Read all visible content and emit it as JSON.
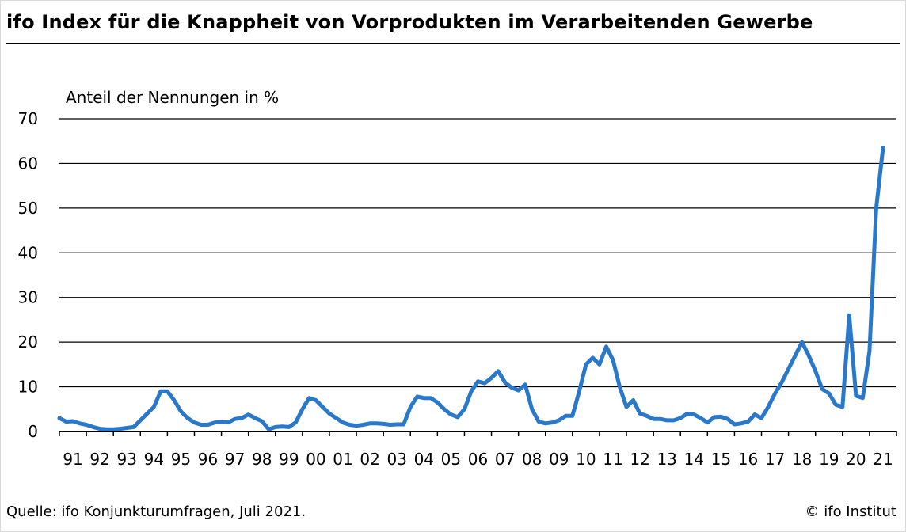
{
  "title": "ifo Index für die Knappheit von Vorprodukten im Verarbeitenden Gewerbe",
  "source": "Quelle: ifo Konjunkturumfragen, Juli 2021.",
  "copyright": "© ifo Institut",
  "colors": {
    "line": "#2a78c9",
    "grid": "#000000"
  },
  "chart_data": {
    "type": "line",
    "ylabel": "Anteil der Nennungen in %",
    "ylim": [
      0,
      70
    ],
    "yticks": [
      0,
      10,
      20,
      30,
      40,
      50,
      60,
      70
    ],
    "xlim": [
      1991,
      2022
    ],
    "xticks": [
      "91",
      "92",
      "93",
      "94",
      "95",
      "96",
      "97",
      "98",
      "99",
      "00",
      "01",
      "02",
      "03",
      "04",
      "05",
      "06",
      "07",
      "08",
      "09",
      "10",
      "11",
      "12",
      "13",
      "14",
      "15",
      "16",
      "17",
      "18",
      "19",
      "20",
      "21"
    ],
    "grid": "horizontal",
    "series": [
      {
        "x": [
          1991.0,
          1991.25,
          1991.5,
          1991.75,
          1992.0,
          1992.25,
          1992.5,
          1992.75,
          1993.0,
          1993.25,
          1993.5,
          1993.75,
          1994.0,
          1994.25,
          1994.5,
          1994.75,
          1995.0,
          1995.25,
          1995.5,
          1995.75,
          1996.0,
          1996.25,
          1996.5,
          1996.75,
          1997.0,
          1997.25,
          1997.5,
          1997.75,
          1998.0,
          1998.25,
          1998.5,
          1998.75,
          1999.0,
          1999.25,
          1999.5,
          1999.75,
          2000.0,
          2000.25,
          2000.5,
          2000.75,
          2001.0,
          2001.25,
          2001.5,
          2001.75,
          2002.0,
          2002.25,
          2002.5,
          2002.75,
          2003.0,
          2003.25,
          2003.5,
          2003.75,
          2004.0,
          2004.25,
          2004.5,
          2004.75,
          2005.0,
          2005.25,
          2005.5,
          2005.75,
          2006.0,
          2006.25,
          2006.5,
          2006.75,
          2007.0,
          2007.25,
          2007.5,
          2007.75,
          2008.0,
          2008.25,
          2008.5,
          2008.75,
          2009.0,
          2009.25,
          2009.5,
          2009.75,
          2010.0,
          2010.25,
          2010.5,
          2010.75,
          2011.0,
          2011.25,
          2011.5,
          2011.75,
          2012.0,
          2012.25,
          2012.5,
          2012.75,
          2013.0,
          2013.25,
          2013.5,
          2013.75,
          2014.0,
          2014.25,
          2014.5,
          2014.75,
          2015.0,
          2015.25,
          2015.5,
          2015.75,
          2016.0,
          2016.25,
          2016.5,
          2016.75,
          2017.0,
          2017.25,
          2017.5,
          2017.75,
          2018.0,
          2018.25,
          2018.5,
          2018.75,
          2019.0,
          2019.25,
          2019.5,
          2019.75,
          2020.0,
          2020.25,
          2020.5,
          2020.75,
          2021.0,
          2021.25,
          2021.5
        ],
        "y": [
          3,
          2.2,
          2.3,
          1.8,
          1.5,
          1,
          0.6,
          0.5,
          0.5,
          0.6,
          0.8,
          1,
          2.5,
          4,
          5.5,
          9,
          9,
          7,
          4.5,
          3,
          2,
          1.5,
          1.5,
          2,
          2.2,
          2,
          2.8,
          3,
          3.8,
          3,
          2.3,
          0.5,
          1,
          1.1,
          1,
          2,
          5,
          7.5,
          7,
          5.5,
          4,
          3,
          2,
          1.5,
          1.3,
          1.5,
          1.8,
          1.8,
          1.7,
          1.5,
          1.6,
          1.6,
          5.5,
          7.8,
          7.5,
          7.5,
          6.5,
          5,
          3.8,
          3.2,
          5,
          9,
          11.2,
          10.8,
          12,
          13.5,
          11,
          9.8,
          9.2,
          10.5,
          5,
          2.2,
          1.8,
          2,
          2.5,
          3.5,
          3.5,
          9,
          15,
          16.5,
          15,
          19,
          16,
          10,
          5.5,
          7,
          4,
          3.5,
          2.8,
          2.8,
          2.5,
          2.5,
          3,
          4,
          3.8,
          3,
          2,
          3.2,
          3.3,
          2.8,
          1.6,
          1.8,
          2.2,
          3.8,
          3,
          5.5,
          8.5,
          11,
          14,
          17,
          20,
          17,
          13.5,
          9.5,
          8.5,
          6,
          5.5,
          26,
          8,
          7.5,
          18,
          50,
          63.5
        ]
      }
    ]
  }
}
